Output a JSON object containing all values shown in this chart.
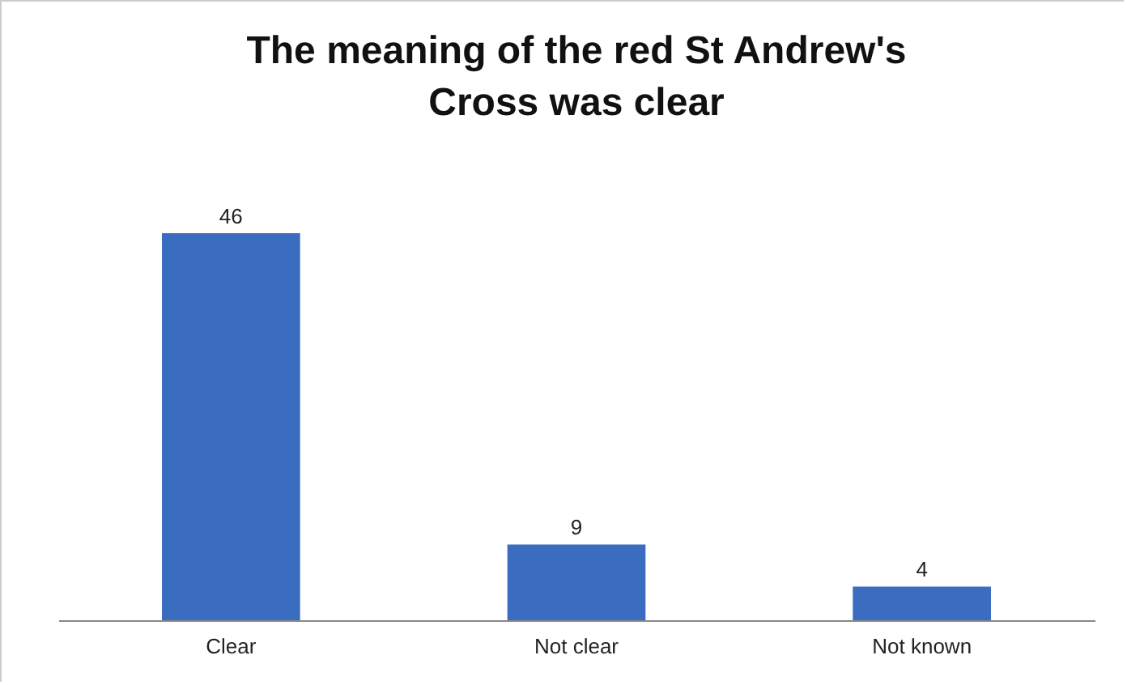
{
  "chart_data": {
    "type": "bar",
    "title": "The meaning of the red St Andrew's Cross was clear",
    "categories": [
      "Clear",
      "Not clear",
      "Not known"
    ],
    "values": [
      46,
      9,
      4
    ],
    "color": "#3a6cc0",
    "data_labels": true
  }
}
